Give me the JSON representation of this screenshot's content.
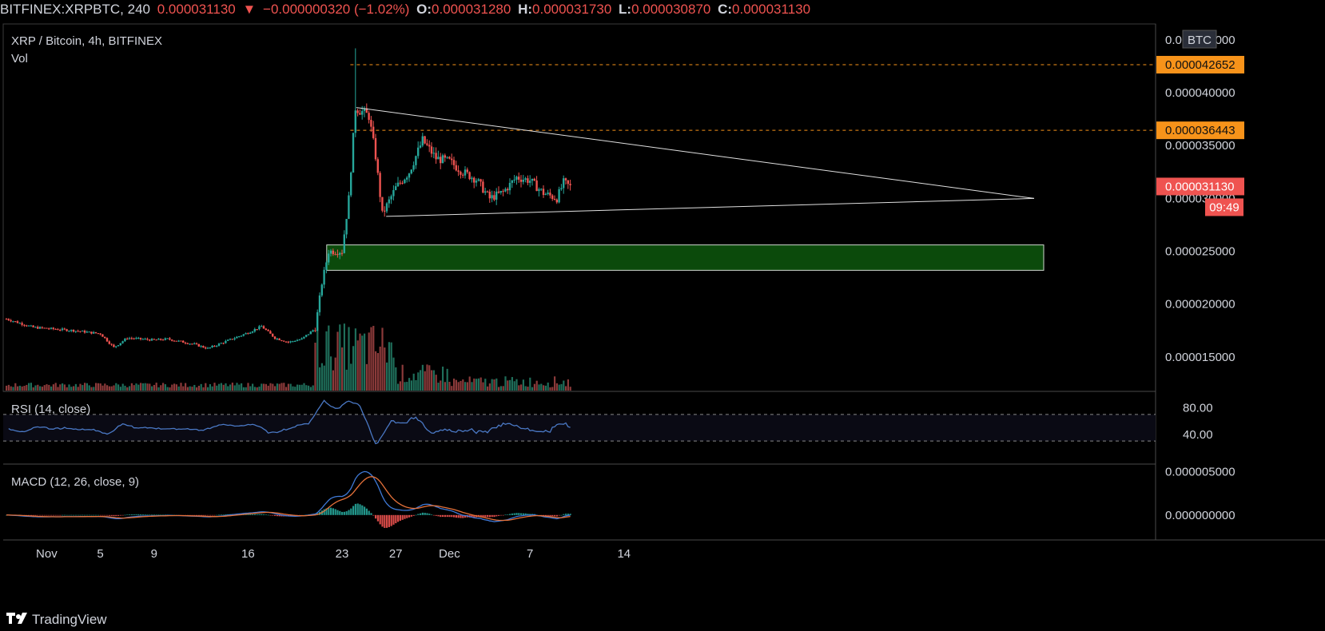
{
  "header": {
    "symbol": "BITFINEX:XRPBTC, 240",
    "last": "0.000031130",
    "change": "−0.000000320 (−1.02%)",
    "o_label": "O:",
    "o_value": "0.000031280",
    "h_label": "H:",
    "h_value": "0.000031730",
    "l_label": "L:",
    "l_value": "0.000030870",
    "c_label": "C:",
    "c_value": "0.000031130",
    "change_arrow_icon": "triangle-down-icon"
  },
  "main_pane": {
    "title": "XRP / Bitcoin, 4h, BITFINEX",
    "vol_label": "Vol",
    "currency_badge": "BTC",
    "y_ticks": [
      "0.000045000",
      "0.000040000",
      "0.000035000",
      "0.000030000",
      "0.000025000",
      "0.000020000",
      "0.000015000"
    ],
    "price_labels": {
      "resistance_1": "0.000042652",
      "resistance_2": "0.000036443",
      "current": "0.000031130",
      "countdown": "09:49"
    }
  },
  "rsi_pane": {
    "title": "RSI (14, close)",
    "y_ticks": [
      "80.00",
      "40.00"
    ]
  },
  "macd_pane": {
    "title": "MACD (12, 26, close, 9)",
    "y_ticks": [
      "0.000005000",
      "0.000000000"
    ]
  },
  "x_axis": {
    "ticks": [
      "Nov",
      "5",
      "9",
      "16",
      "23",
      "27",
      "Dec",
      "7",
      "14"
    ]
  },
  "footer": {
    "brand": "TradingView",
    "logo_icon": "tradingview-logo-icon"
  },
  "colors": {
    "up": "#26a69a",
    "down": "#ef5350",
    "rsi": "#4a78c4",
    "macd": "#3f7ad8",
    "signal": "#e5713a",
    "zone_fill": "#0b4a0b",
    "level_badge": "#f7931a"
  },
  "chart_data": {
    "type": "candlestick",
    "symbol": "XRPBTC",
    "interval": "4h",
    "ylim": [
      1.25e-05,
      4.59e-05
    ],
    "levels": [
      4.2652e-05,
      3.6443e-05
    ],
    "support_zone": [
      2.32e-05,
      2.56e-05
    ],
    "price_path": [
      {
        "x": "Oct 29",
        "y": 1.86e-05
      },
      {
        "x": "Oct 31",
        "y": 1.78e-05
      },
      {
        "x": "Nov 3",
        "y": 1.75e-05
      },
      {
        "x": "Nov 5",
        "y": 1.72e-05
      },
      {
        "x": "Nov 6",
        "y": 1.59e-05
      },
      {
        "x": "Nov 7",
        "y": 1.68e-05
      },
      {
        "x": "Nov 9",
        "y": 1.66e-05
      },
      {
        "x": "Nov 10",
        "y": 1.67e-05
      },
      {
        "x": "Nov 12",
        "y": 1.62e-05
      },
      {
        "x": "Nov 13",
        "y": 1.58e-05
      },
      {
        "x": "Nov 15",
        "y": 1.68e-05
      },
      {
        "x": "Nov 16",
        "y": 1.73e-05
      },
      {
        "x": "Nov 17",
        "y": 1.79e-05
      },
      {
        "x": "Nov 18",
        "y": 1.68e-05
      },
      {
        "x": "Nov 19",
        "y": 1.64e-05
      },
      {
        "x": "Nov 20",
        "y": 1.67e-05
      },
      {
        "x": "Nov 21",
        "y": 1.77e-05
      },
      {
        "x": "Nov 21 12:00",
        "y": 2.2e-05
      },
      {
        "x": "Nov 22",
        "y": 2.5e-05
      },
      {
        "x": "Nov 23",
        "y": 2.5e-05
      },
      {
        "x": "Nov 23 12:00",
        "y": 3e-05
      },
      {
        "x": "Nov 24",
        "y": 3.86e-05
      },
      {
        "x": "Nov 25",
        "y": 3.78e-05
      },
      {
        "x": "Nov 25 12:00",
        "y": 3.4e-05
      },
      {
        "x": "Nov 26",
        "y": 2.85e-05
      },
      {
        "x": "Nov 27",
        "y": 3.1e-05
      },
      {
        "x": "Nov 28",
        "y": 3.25e-05
      },
      {
        "x": "Nov 29",
        "y": 3.55e-05
      },
      {
        "x": "Nov 30",
        "y": 3.38e-05
      },
      {
        "x": "Dec 1",
        "y": 3.35e-05
      },
      {
        "x": "Dec 2",
        "y": 3.25e-05
      },
      {
        "x": "Dec 3",
        "y": 3.18e-05
      },
      {
        "x": "Dec 4",
        "y": 3e-05
      },
      {
        "x": "Dec 5",
        "y": 3.06e-05
      },
      {
        "x": "Dec 6",
        "y": 3.2e-05
      },
      {
        "x": "Dec 7",
        "y": 3.17e-05
      },
      {
        "x": "Dec 8",
        "y": 3.05e-05
      },
      {
        "x": "Dec 9",
        "y": 3e-05
      },
      {
        "x": "Dec 9 12:00",
        "y": 3.15e-05
      },
      {
        "x": "Dec 10",
        "y": 3.11e-05
      }
    ],
    "rsi_range": [
      0,
      100
    ],
    "rsi_levels": [
      70,
      30
    ],
    "macd_range": [
      -2.5e-06,
      5.5e-06
    ],
    "current_price": 3.113e-05
  }
}
